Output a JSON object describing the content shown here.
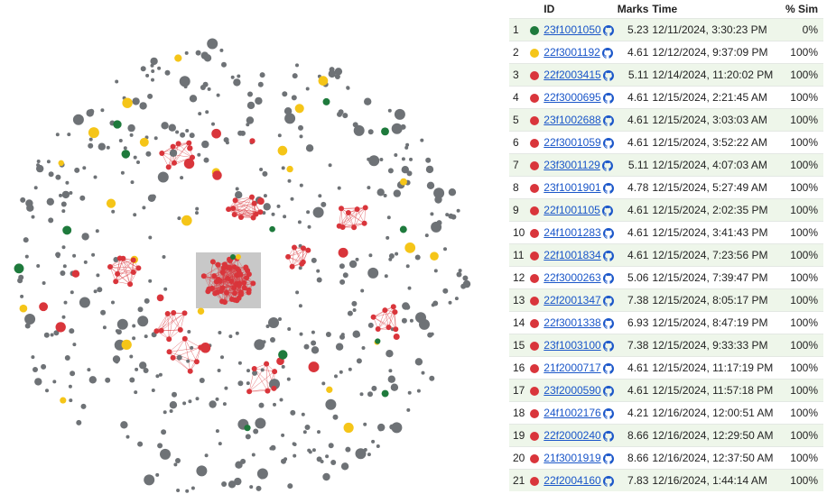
{
  "colors": {
    "green": "#1e7a3c",
    "yellow": "#f5c518",
    "red": "#d9353b",
    "gray": "#6e7276",
    "link": "#1a56c9"
  },
  "table": {
    "headers": {
      "num": "",
      "dot": "",
      "id": "ID",
      "marks": "Marks",
      "time": "Time",
      "sim": "% Sim"
    },
    "rows": [
      {
        "num": "1",
        "color": "green",
        "id": "23f1001050",
        "marks": "5.23",
        "time": "12/11/2024, 3:30:23 PM",
        "sim": "0%"
      },
      {
        "num": "2",
        "color": "yellow",
        "id": "22f3001192",
        "marks": "4.61",
        "time": "12/12/2024, 9:37:09 PM",
        "sim": "100%"
      },
      {
        "num": "3",
        "color": "red",
        "id": "22f2003415",
        "marks": "5.11",
        "time": "12/14/2024, 11:20:02 PM",
        "sim": "100%"
      },
      {
        "num": "4",
        "color": "red",
        "id": "22f3000695",
        "marks": "4.61",
        "time": "12/15/2024, 2:21:45 AM",
        "sim": "100%"
      },
      {
        "num": "5",
        "color": "red",
        "id": "23f1002688",
        "marks": "4.61",
        "time": "12/15/2024, 3:03:03 AM",
        "sim": "100%"
      },
      {
        "num": "6",
        "color": "red",
        "id": "22f3001059",
        "marks": "4.61",
        "time": "12/15/2024, 3:52:22 AM",
        "sim": "100%"
      },
      {
        "num": "7",
        "color": "red",
        "id": "23f3001129",
        "marks": "5.11",
        "time": "12/15/2024, 4:07:03 AM",
        "sim": "100%"
      },
      {
        "num": "8",
        "color": "red",
        "id": "23f1001901",
        "marks": "4.78",
        "time": "12/15/2024, 5:27:49 AM",
        "sim": "100%"
      },
      {
        "num": "9",
        "color": "red",
        "id": "22f1001105",
        "marks": "4.61",
        "time": "12/15/2024, 2:02:35 PM",
        "sim": "100%"
      },
      {
        "num": "10",
        "color": "red",
        "id": "24f1001283",
        "marks": "4.61",
        "time": "12/15/2024, 3:41:43 PM",
        "sim": "100%"
      },
      {
        "num": "11",
        "color": "red",
        "id": "22f1001834",
        "marks": "4.61",
        "time": "12/15/2024, 7:23:56 PM",
        "sim": "100%"
      },
      {
        "num": "12",
        "color": "red",
        "id": "22f3000263",
        "marks": "5.06",
        "time": "12/15/2024, 7:39:47 PM",
        "sim": "100%"
      },
      {
        "num": "13",
        "color": "red",
        "id": "22f2001347",
        "marks": "7.38",
        "time": "12/15/2024, 8:05:17 PM",
        "sim": "100%"
      },
      {
        "num": "14",
        "color": "red",
        "id": "22f3001338",
        "marks": "6.93",
        "time": "12/15/2024, 8:47:19 PM",
        "sim": "100%"
      },
      {
        "num": "15",
        "color": "red",
        "id": "23f1003100",
        "marks": "7.38",
        "time": "12/15/2024, 9:33:33 PM",
        "sim": "100%"
      },
      {
        "num": "16",
        "color": "red",
        "id": "21f2000717",
        "marks": "4.61",
        "time": "12/15/2024, 11:17:19 PM",
        "sim": "100%"
      },
      {
        "num": "17",
        "color": "red",
        "id": "23f2000590",
        "marks": "4.61",
        "time": "12/15/2024, 11:57:18 PM",
        "sim": "100%"
      },
      {
        "num": "18",
        "color": "red",
        "id": "24f1002176",
        "marks": "4.21",
        "time": "12/16/2024, 12:00:51 AM",
        "sim": "100%"
      },
      {
        "num": "19",
        "color": "red",
        "id": "22f2000240",
        "marks": "8.66",
        "time": "12/16/2024, 12:29:50 AM",
        "sim": "100%"
      },
      {
        "num": "20",
        "color": "red",
        "id": "21f3001919",
        "marks": "8.66",
        "time": "12/16/2024, 12:37:50 AM",
        "sim": "100%"
      },
      {
        "num": "21",
        "color": "red",
        "id": "22f2004160",
        "marks": "7.83",
        "time": "12/16/2024, 1:44:14 AM",
        "sim": "100%"
      }
    ]
  }
}
